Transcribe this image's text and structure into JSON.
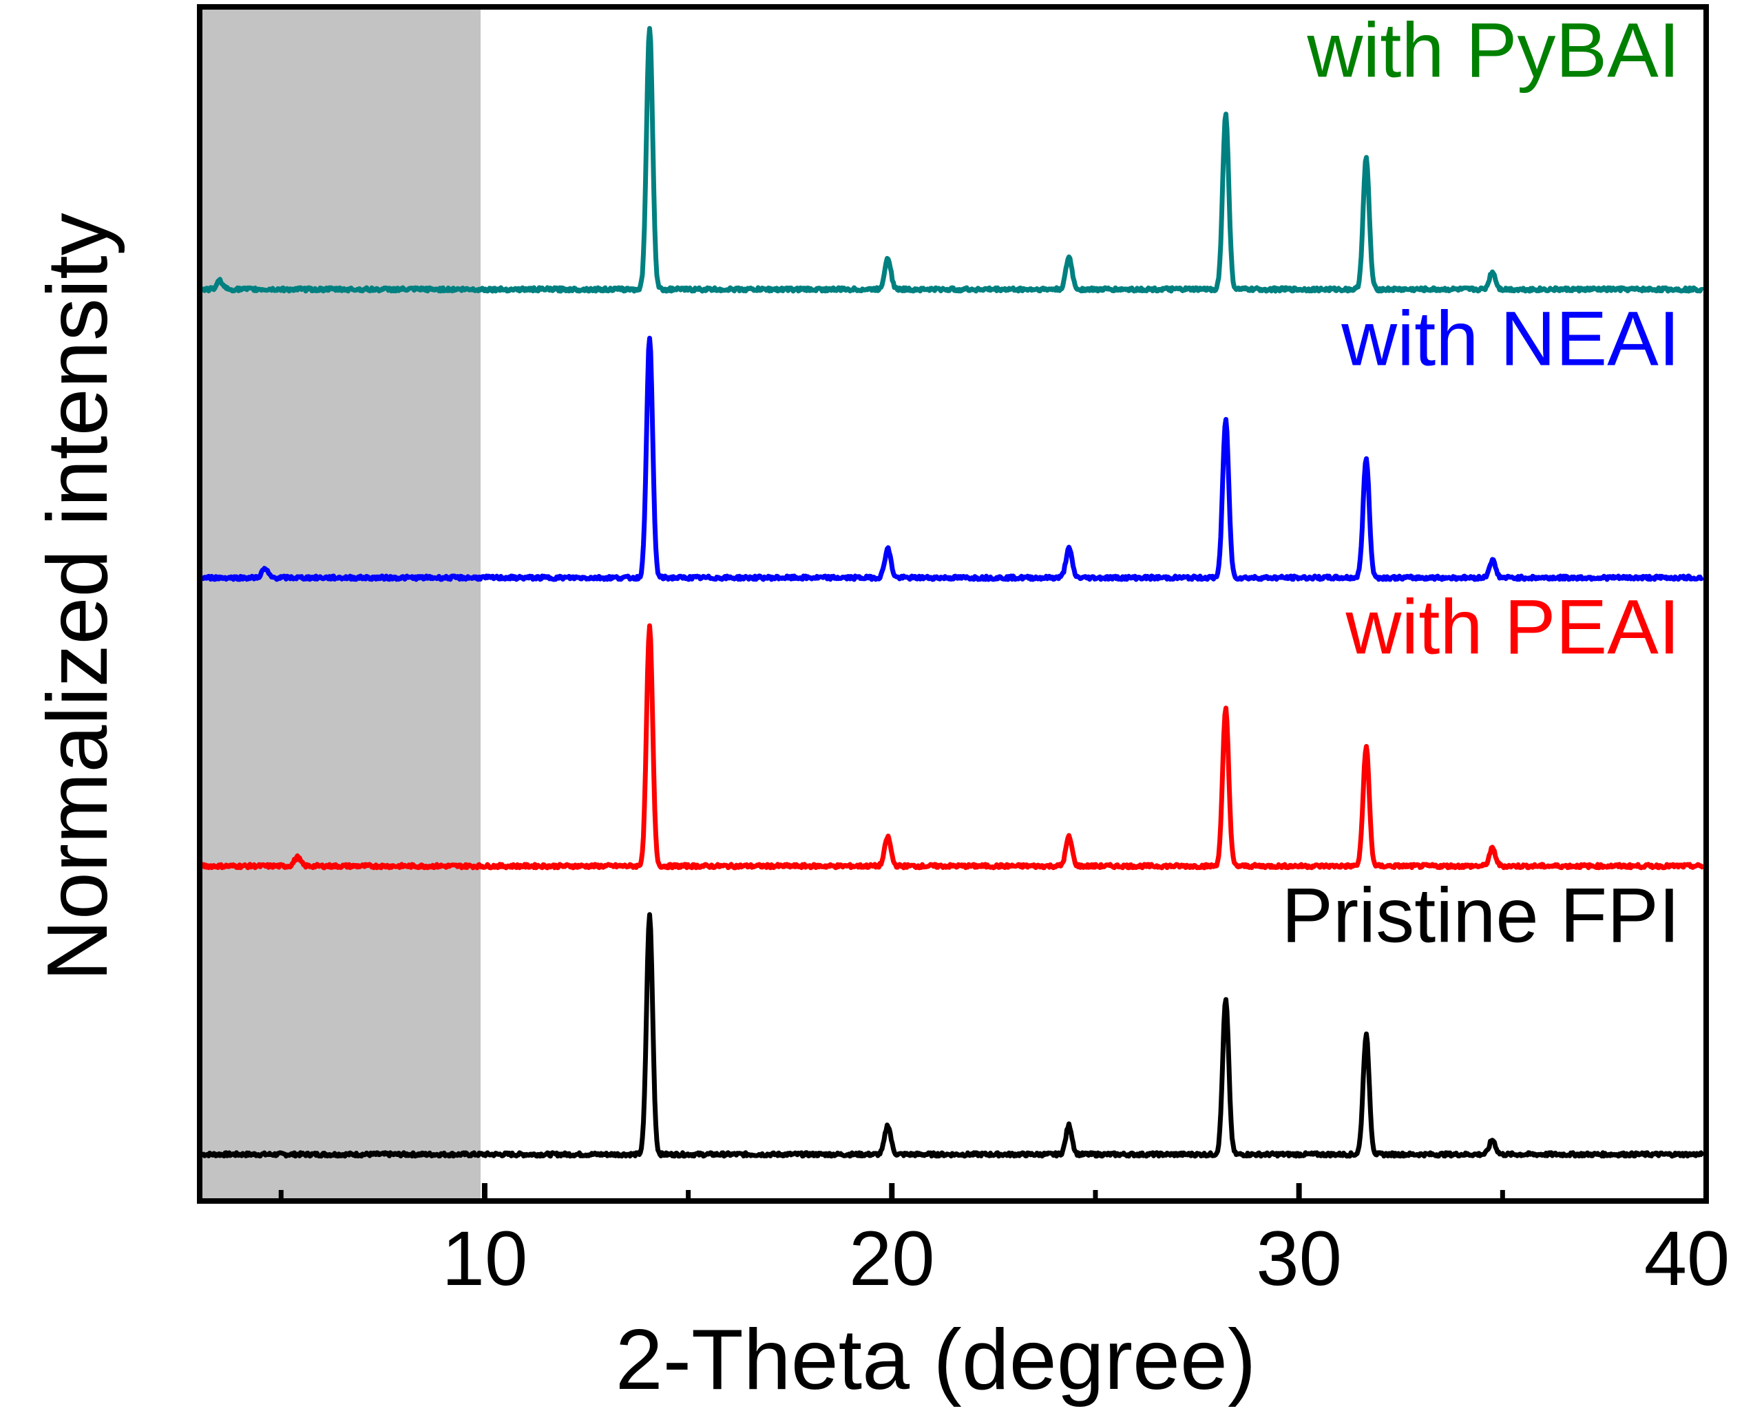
{
  "chart_data": {
    "type": "line",
    "title": "",
    "xlabel": "2-Theta (degree)",
    "ylabel": "Normalized intensity",
    "xlim": [
      3,
      40
    ],
    "ylim": [
      0,
      4.1
    ],
    "x_major_ticks": [
      10,
      20,
      30,
      40
    ],
    "x_minor_ticks": [
      5,
      15,
      25,
      35
    ],
    "yticks_shown": false,
    "grid": false,
    "shaded_region": {
      "x_from": 3,
      "x_to": 9.9,
      "color": "#c3c3c3"
    },
    "series": [
      {
        "name": "Pristine FPI",
        "color": "#000000",
        "baseline": 0.16,
        "peaks": [
          {
            "x": 14.05,
            "h": 0.82
          },
          {
            "x": 19.9,
            "h": 0.1
          },
          {
            "x": 24.35,
            "h": 0.1
          },
          {
            "x": 28.2,
            "h": 0.53
          },
          {
            "x": 31.65,
            "h": 0.41
          },
          {
            "x": 34.75,
            "h": 0.05
          }
        ]
      },
      {
        "name": "with PEAI",
        "color": "#ff0000",
        "baseline": 1.15,
        "peaks": [
          {
            "x": 5.4,
            "h": 0.03
          },
          {
            "x": 14.05,
            "h": 0.82
          },
          {
            "x": 19.9,
            "h": 0.1
          },
          {
            "x": 24.35,
            "h": 0.1
          },
          {
            "x": 28.2,
            "h": 0.54
          },
          {
            "x": 31.65,
            "h": 0.41
          },
          {
            "x": 34.75,
            "h": 0.06
          }
        ]
      },
      {
        "name": "with NEAI",
        "color": "#0000ff",
        "baseline": 2.14,
        "peaks": [
          {
            "x": 4.6,
            "h": 0.03
          },
          {
            "x": 14.05,
            "h": 0.82
          },
          {
            "x": 19.9,
            "h": 0.1
          },
          {
            "x": 24.35,
            "h": 0.1
          },
          {
            "x": 28.2,
            "h": 0.54
          },
          {
            "x": 31.65,
            "h": 0.41
          },
          {
            "x": 34.75,
            "h": 0.06
          }
        ]
      },
      {
        "name": "with PyBAI",
        "color": "#008080",
        "label_color": "#008000",
        "baseline": 3.13,
        "peaks": [
          {
            "x": 3.5,
            "h": 0.03
          },
          {
            "x": 14.05,
            "h": 0.9
          },
          {
            "x": 19.9,
            "h": 0.11
          },
          {
            "x": 24.35,
            "h": 0.11
          },
          {
            "x": 28.2,
            "h": 0.6
          },
          {
            "x": 31.65,
            "h": 0.45
          },
          {
            "x": 34.75,
            "h": 0.06
          }
        ]
      }
    ]
  }
}
